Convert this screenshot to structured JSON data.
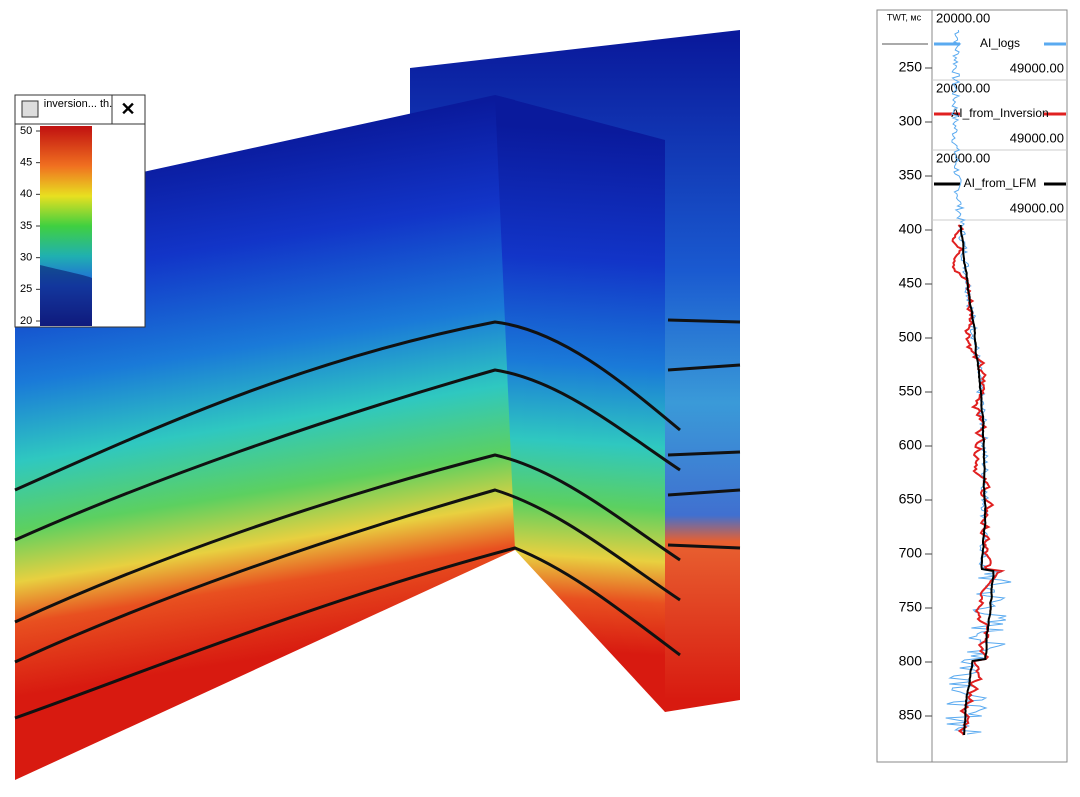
{
  "legend_widget": {
    "title": "inversion... th.",
    "close": "✕",
    "scale": [
      50,
      45,
      40,
      35,
      30,
      25,
      20
    ]
  },
  "well_panel": {
    "axis_title": "TWT, мс",
    "tracks": [
      {
        "min": "20000.00",
        "name": "AI_logs",
        "max": "49000.00",
        "color": "#5aaaf0"
      },
      {
        "min": "20000.00",
        "name": "AI_from_Inversion",
        "max": "49000.00",
        "color": "#e02020"
      },
      {
        "min": "20000.00",
        "name": "AI_from_LFM",
        "max": "49000.00",
        "color": "#000000"
      }
    ],
    "depth_ticks": [
      250,
      300,
      350,
      400,
      450,
      500,
      550,
      600,
      650,
      700,
      750,
      800,
      850
    ]
  }
}
